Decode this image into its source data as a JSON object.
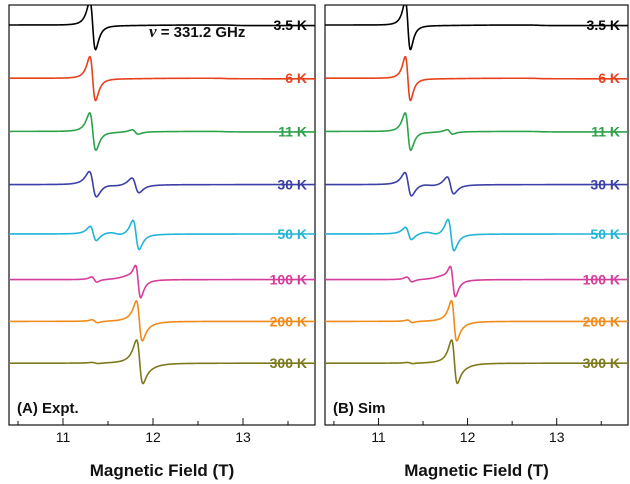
{
  "chart_data": [
    {
      "type": "line",
      "panel_label": "(A) Expt.",
      "annotation": {
        "symbol": "ν",
        "text": " = 331.2 GHz"
      },
      "xlabel": "Magnetic Field (T)",
      "ylabel": "",
      "xlim": [
        10.4,
        13.8
      ],
      "xticks": [
        "11",
        "12",
        "13"
      ],
      "xtick_values": [
        11,
        12,
        13
      ],
      "series": [
        {
          "name": "3.5 K",
          "color": "#000000",
          "baseline": 1.0,
          "mixing": 0.0,
          "g_shift": 0.0,
          "width": 0.055,
          "amp": 2.1,
          "perp_feature": 12.9
        },
        {
          "name": "6 K",
          "color": "#e8401c",
          "baseline": 0.86,
          "mixing": 0.0,
          "g_shift": 0.0,
          "width": 0.055,
          "amp": 1.9,
          "perp_feature": 12.8
        },
        {
          "name": "11 K",
          "color": "#2ca24a",
          "baseline": 0.72,
          "mixing": 0.1,
          "g_shift": 0.02,
          "width": 0.06,
          "amp": 1.8,
          "perp_feature": 12.8
        },
        {
          "name": "30 K",
          "color": "#3c3fa6",
          "baseline": 0.58,
          "mixing": 0.35,
          "g_shift": 0.05,
          "width": 0.07,
          "amp": 1.7,
          "perp_feature": null
        },
        {
          "name": "50 K",
          "color": "#21b4d6",
          "baseline": 0.45,
          "mixing": 0.65,
          "g_shift": 0.12,
          "width": 0.06,
          "amp": 1.8,
          "perp_feature": null
        },
        {
          "name": "100 K",
          "color": "#d63c9c",
          "baseline": 0.33,
          "mixing": 0.85,
          "g_shift": 0.35,
          "width": 0.05,
          "amp": 1.5,
          "perp_feature": null
        },
        {
          "name": "200 K",
          "color": "#f08a1a",
          "baseline": 0.22,
          "mixing": 0.92,
          "g_shift": 0.48,
          "width": 0.055,
          "amp": 1.6,
          "perp_feature": null
        },
        {
          "name": "300 K",
          "color": "#7c7a1c",
          "baseline": 0.11,
          "mixing": 0.97,
          "g_shift": 0.52,
          "width": 0.06,
          "amp": 1.7,
          "perp_feature": null
        }
      ]
    },
    {
      "type": "line",
      "panel_label": "(B) Sim",
      "xlabel": "Magnetic Field (T)",
      "ylabel": "",
      "xlim": [
        10.4,
        13.8
      ],
      "xticks": [
        "11",
        "12",
        "13"
      ],
      "xtick_values": [
        11,
        12,
        13
      ],
      "series": [
        {
          "name": "3.5 K",
          "color": "#000000",
          "baseline": 1.0,
          "mixing": 0.0,
          "g_shift": 0.0,
          "width": 0.05,
          "amp": 2.1,
          "perp_feature": 12.8
        },
        {
          "name": "6 K",
          "color": "#e8401c",
          "baseline": 0.86,
          "mixing": 0.0,
          "g_shift": 0.0,
          "width": 0.05,
          "amp": 1.9,
          "perp_feature": 12.8
        },
        {
          "name": "11 K",
          "color": "#2ca24a",
          "baseline": 0.72,
          "mixing": 0.1,
          "g_shift": 0.02,
          "width": 0.055,
          "amp": 1.8,
          "perp_feature": 12.8
        },
        {
          "name": "30 K",
          "color": "#3c3fa6",
          "baseline": 0.58,
          "mixing": 0.4,
          "g_shift": 0.08,
          "width": 0.065,
          "amp": 1.7,
          "perp_feature": null
        },
        {
          "name": "50 K",
          "color": "#21b4d6",
          "baseline": 0.45,
          "mixing": 0.7,
          "g_shift": 0.14,
          "width": 0.06,
          "amp": 1.8,
          "perp_feature": null
        },
        {
          "name": "100 K",
          "color": "#d63c9c",
          "baseline": 0.33,
          "mixing": 0.85,
          "g_shift": 0.35,
          "width": 0.05,
          "amp": 1.4,
          "perp_feature": null
        },
        {
          "name": "200 K",
          "color": "#f08a1a",
          "baseline": 0.22,
          "mixing": 0.93,
          "g_shift": 0.48,
          "width": 0.05,
          "amp": 1.6,
          "perp_feature": null
        },
        {
          "name": "300 K",
          "color": "#7c7a1c",
          "baseline": 0.11,
          "mixing": 0.97,
          "g_shift": 0.52,
          "width": 0.055,
          "amp": 1.7,
          "perp_feature": null
        }
      ]
    }
  ]
}
